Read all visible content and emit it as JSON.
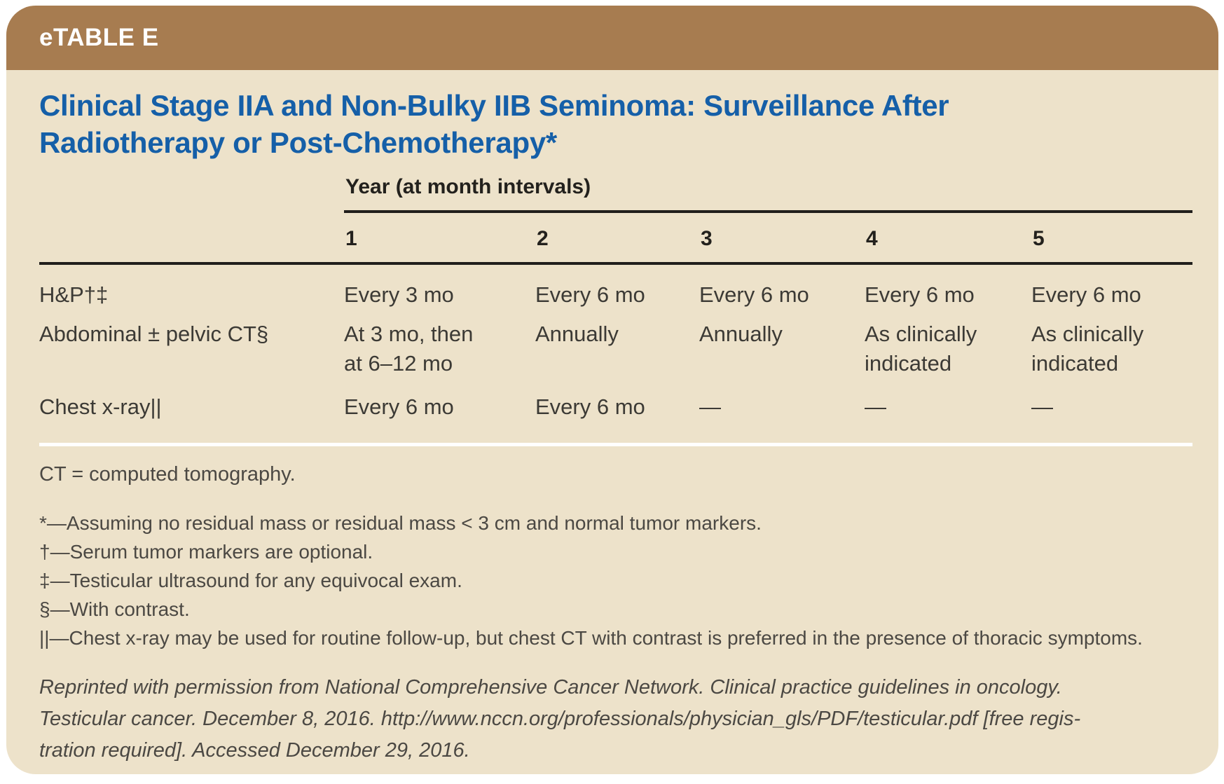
{
  "header": {
    "label": "eTABLE E"
  },
  "title": {
    "lines": [
      "Clinical Stage IIA and Non-Bulky IIB Seminoma: Surveillance After",
      "Radiotherapy or Post-Chemotherapy*"
    ]
  },
  "table": {
    "year_header": "Year (at month intervals)",
    "year_columns": [
      "1",
      "2",
      "3",
      "4",
      "5"
    ],
    "rows": [
      {
        "label": "H&P†‡",
        "cells": [
          "Every 3 mo",
          "Every 6 mo",
          "Every 6 mo",
          "Every 6 mo",
          "Every 6 mo"
        ]
      },
      {
        "label": "Abdominal ± pelvic CT§",
        "cells": [
          "At 3 mo, then\nat 6–12 mo",
          "Annually",
          "Annually",
          "As clinically\nindicated",
          "As clinically\nindicated"
        ]
      },
      {
        "label": "Chest x-ray||",
        "cells": [
          "Every 6 mo",
          "Every 6 mo",
          "—",
          "—",
          "—"
        ]
      }
    ]
  },
  "footnotes": {
    "abbreviation": "CT = computed tomography.",
    "notes": [
      "*—Assuming no residual mass or residual mass < 3 cm and normal tumor markers.",
      "†—Serum tumor markers are optional.",
      "‡—Testicular ultrasound for any equivocal exam.",
      "§—With contrast.",
      "||—Chest x-ray may be used for routine follow-up, but chest CT with contrast is preferred in the presence of thoracic symptoms."
    ]
  },
  "citation": {
    "lines": [
      "Reprinted with permission from National Comprehensive Cancer Network. Clinical practice guidelines in oncology.",
      "Testicular cancer. December 8, 2016. http://www.nccn.org/professionals/physician_gls/PDF/testicular.pdf [free regis-",
      "tration required]. Accessed December 29, 2016."
    ]
  },
  "colors": {
    "header_bar": "#A77C50",
    "card_bg": "#EDE2CA",
    "title_color": "#155FA8",
    "text_color": "#3C3A35",
    "note_color": "#4B4843",
    "line_color": "#211F1C",
    "separator_color": "#FFFFFF"
  }
}
